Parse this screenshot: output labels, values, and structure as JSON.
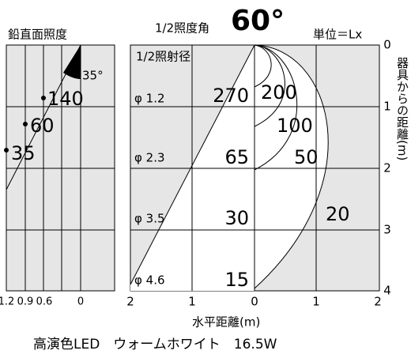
{
  "header": {
    "left_title": "鉛直面照度",
    "half_angle_label": "1/2照度角",
    "half_angle": "60°",
    "unit": "単位＝Lx"
  },
  "left_panel": {
    "angle": "35°",
    "points": [
      "35",
      "60",
      "140"
    ],
    "x_axis": [
      "1.2",
      "0.9",
      "0.6",
      "0"
    ]
  },
  "right_panel": {
    "diameter_title": "1/2照射径",
    "rows": [
      {
        "diameter": "φ 1.2",
        "lux": "270"
      },
      {
        "diameter": "φ 2.3",
        "lux": "65"
      },
      {
        "diameter": "φ 3.5",
        "lux": "30"
      },
      {
        "diameter": "φ 4.6",
        "lux": "15"
      }
    ],
    "isolux": [
      "200",
      "100",
      "50",
      "20"
    ],
    "x_axis": [
      "2",
      "1",
      "0",
      "1",
      "2"
    ],
    "y_axis": [
      "0",
      "1",
      "2",
      "3",
      "4"
    ],
    "y_title": "器具からの距離(m)",
    "x_title": "水平距離(m)"
  },
  "footer": "高演色LED　ウォームホワイト　16.5W"
}
